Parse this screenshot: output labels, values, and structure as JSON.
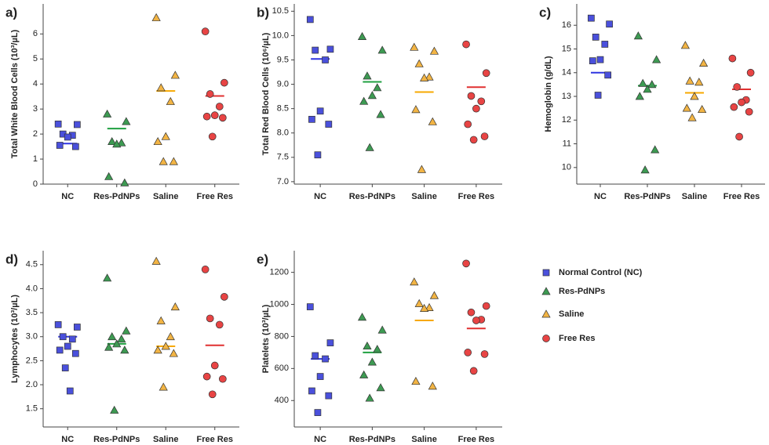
{
  "groups": [
    {
      "name": "Normal Control (NC)",
      "color": "#4a50dc",
      "line_color": "#2f35e0",
      "marker": "square"
    },
    {
      "name": "Res-PdNPs",
      "color": "#3d9a52",
      "line_color": "#1fa040",
      "marker": "triangle"
    },
    {
      "name": "Saline",
      "color": "#f2b444",
      "line_color": "#f7a800",
      "marker": "triangle"
    },
    {
      "name": "Free Res",
      "color": "#e84444",
      "line_color": "#e03030",
      "marker": "circle"
    }
  ],
  "chart_data": [
    {
      "type": "strip",
      "label": "a)",
      "y_label": "Total White Blood Cells (10³/µL)",
      "categories": [
        "NC",
        "Res-PdNPs",
        "Saline",
        "Free Res"
      ],
      "values": [
        [
          2.4,
          2.38,
          2.0,
          1.95,
          1.88,
          1.55,
          1.5
        ],
        [
          2.8,
          2.5,
          1.7,
          1.65,
          1.6,
          0.3,
          0.05
        ],
        [
          6.65,
          4.35,
          3.85,
          3.3,
          1.9,
          1.7,
          0.9,
          0.9
        ],
        [
          6.1,
          4.05,
          3.6,
          3.1,
          2.75,
          2.7,
          2.65,
          1.9
        ]
      ],
      "means": [
        1.62,
        2.22,
        3.72,
        3.52
      ],
      "ylim": [
        0,
        7.2
      ],
      "yticks": [
        0,
        1,
        2,
        3,
        4,
        5,
        6
      ]
    },
    {
      "type": "strip",
      "label": "b)",
      "y_label": "Total Red Blood Cells (10⁶/µL)",
      "categories": [
        "NC",
        "Res-PdNPs",
        "Saline",
        "Free Res"
      ],
      "values": [
        [
          10.33,
          9.72,
          9.7,
          9.5,
          8.45,
          8.28,
          8.18,
          7.55
        ],
        [
          9.98,
          9.7,
          9.17,
          8.93,
          8.77,
          8.65,
          8.38,
          7.7
        ],
        [
          9.76,
          9.68,
          9.42,
          9.15,
          9.13,
          8.48,
          8.23,
          7.25
        ],
        [
          9.82,
          9.23,
          8.76,
          8.65,
          8.5,
          8.18,
          7.93,
          7.86
        ]
      ],
      "means": [
        9.52,
        9.05,
        8.84,
        8.94
      ],
      "ylim": [
        6.95,
        10.65
      ],
      "yticks": [
        {
          "value": 7,
          "label": "7.0"
        },
        7.5,
        {
          "value": 8,
          "label": "8.0"
        },
        8.5,
        {
          "value": 9,
          "label": "9.0"
        },
        9.5,
        {
          "value": 10,
          "label": "10.0"
        },
        10.5
      ]
    },
    {
      "type": "strip",
      "label": "c)",
      "y_label": "Hemoglobin (g/dL)",
      "categories": [
        "NC",
        "Res-PdNPs",
        "Saline",
        "Free Res"
      ],
      "values": [
        [
          16.3,
          16.05,
          15.5,
          15.2,
          14.55,
          14.5,
          13.9,
          13.05
        ],
        [
          15.55,
          14.55,
          13.55,
          13.5,
          13.3,
          13.0,
          10.75,
          9.9
        ],
        [
          15.15,
          14.4,
          13.65,
          13.6,
          13.0,
          12.5,
          12.45,
          12.1
        ],
        [
          14.6,
          14.0,
          13.4,
          12.85,
          12.75,
          12.55,
          12.35,
          11.3
        ]
      ],
      "means": [
        14.0,
        13.45,
        13.15,
        13.3
      ],
      "ylim": [
        9.3,
        16.9
      ],
      "yticks": [
        10,
        11,
        12,
        13,
        14,
        15,
        16
      ]
    },
    {
      "type": "strip",
      "label": "d)",
      "y_label": "Lymphocytes (10³/µL)",
      "categories": [
        "NC",
        "Res-PdNPs",
        "Saline",
        "Free Res"
      ],
      "values": [
        [
          3.25,
          3.2,
          3.0,
          2.95,
          2.8,
          2.72,
          2.65,
          2.35,
          1.87
        ],
        [
          4.22,
          3.12,
          3.0,
          2.95,
          2.85,
          2.78,
          2.72,
          1.47
        ],
        [
          4.57,
          3.62,
          3.33,
          3.0,
          2.8,
          2.72,
          2.65,
          1.95
        ],
        [
          4.4,
          3.83,
          3.38,
          3.25,
          2.4,
          2.17,
          2.12,
          1.8
        ]
      ],
      "means": [
        3.0,
        2.85,
        2.8,
        2.82
      ],
      "ylim": [
        1.12,
        4.79
      ],
      "yticks": [
        1.5,
        {
          "value": 2,
          "label": "2.0"
        },
        2.5,
        {
          "value": 3,
          "label": "3.0"
        },
        3.5,
        {
          "value": 4,
          "label": "4.0"
        },
        4.5
      ]
    },
    {
      "type": "strip",
      "label": "e)",
      "y_label": "Platelets (10³/µL)",
      "categories": [
        "NC",
        "Res-PdNPs",
        "Saline",
        "Free Res"
      ],
      "values": [
        [
          985,
          760,
          680,
          660,
          550,
          460,
          430,
          325
        ],
        [
          920,
          840,
          740,
          720,
          640,
          560,
          480,
          415
        ],
        [
          1140,
          1055,
          1005,
          980,
          975,
          520,
          490
        ],
        [
          1255,
          990,
          950,
          905,
          900,
          700,
          690,
          585
        ]
      ],
      "means": [
        660,
        700,
        900,
        850
      ],
      "ylim": [
        235,
        1335
      ],
      "yticks": [
        400,
        600,
        800,
        1000,
        1200
      ]
    }
  ]
}
